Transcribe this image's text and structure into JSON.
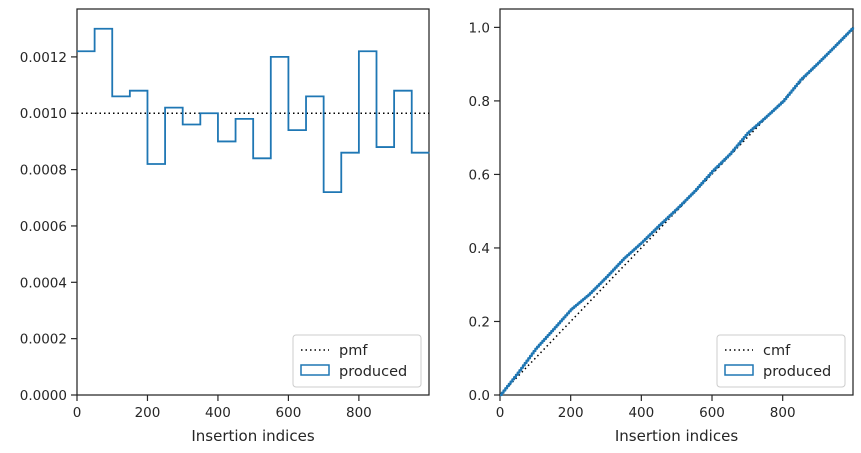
{
  "chart_data": [
    {
      "type": "step",
      "xlabel": "Insertion indices",
      "ylabel": "",
      "xlim": [
        0,
        999
      ],
      "ylim": [
        0,
        0.00137
      ],
      "xticks": [
        "0",
        "200",
        "400",
        "600",
        "800"
      ],
      "yticks": [
        "0.0000",
        "0.0002",
        "0.0004",
        "0.0006",
        "0.0008",
        "0.0010",
        "0.0012"
      ],
      "legend_position": "lower right",
      "series": [
        {
          "name": "pmf",
          "style": "dotted",
          "color": "#000000",
          "y": 0.001
        },
        {
          "name": "produced",
          "style": "step-histogram",
          "color": "#1f77b4",
          "bin_width": 50,
          "bin_starts": [
            0,
            50,
            100,
            150,
            200,
            250,
            300,
            350,
            400,
            450,
            500,
            550,
            600,
            650,
            700,
            750,
            800,
            850,
            900,
            950
          ],
          "values": [
            0.00122,
            0.0013,
            0.00106,
            0.00108,
            0.00082,
            0.00102,
            0.00096,
            0.001,
            0.0009,
            0.00098,
            0.00084,
            0.0012,
            0.00094,
            0.00106,
            0.00072,
            0.00086,
            0.00122,
            0.00088,
            0.00108,
            0.00086
          ]
        }
      ]
    },
    {
      "type": "line",
      "xlabel": "Insertion indices",
      "ylabel": "",
      "xlim": [
        0,
        999
      ],
      "ylim": [
        0,
        1.05
      ],
      "xticks": [
        "0",
        "200",
        "400",
        "600",
        "800"
      ],
      "yticks": [
        "0.0",
        "0.2",
        "0.4",
        "0.6",
        "0.8",
        "1.0"
      ],
      "legend_position": "lower right",
      "series": [
        {
          "name": "cmf",
          "style": "dotted",
          "color": "#000000",
          "x": [
            0,
            999
          ],
          "y": [
            0,
            1.0
          ]
        },
        {
          "name": "produced",
          "style": "step",
          "color": "#1f77b4",
          "x": [
            0,
            50,
            100,
            150,
            200,
            250,
            300,
            350,
            400,
            450,
            500,
            550,
            600,
            650,
            700,
            750,
            800,
            850,
            900,
            950,
            999
          ],
          "y": [
            0,
            0.061,
            0.126,
            0.179,
            0.233,
            0.273,
            0.321,
            0.372,
            0.415,
            0.462,
            0.507,
            0.555,
            0.609,
            0.656,
            0.713,
            0.755,
            0.799,
            0.858,
            0.904,
            0.952,
            1.0
          ]
        }
      ]
    }
  ]
}
